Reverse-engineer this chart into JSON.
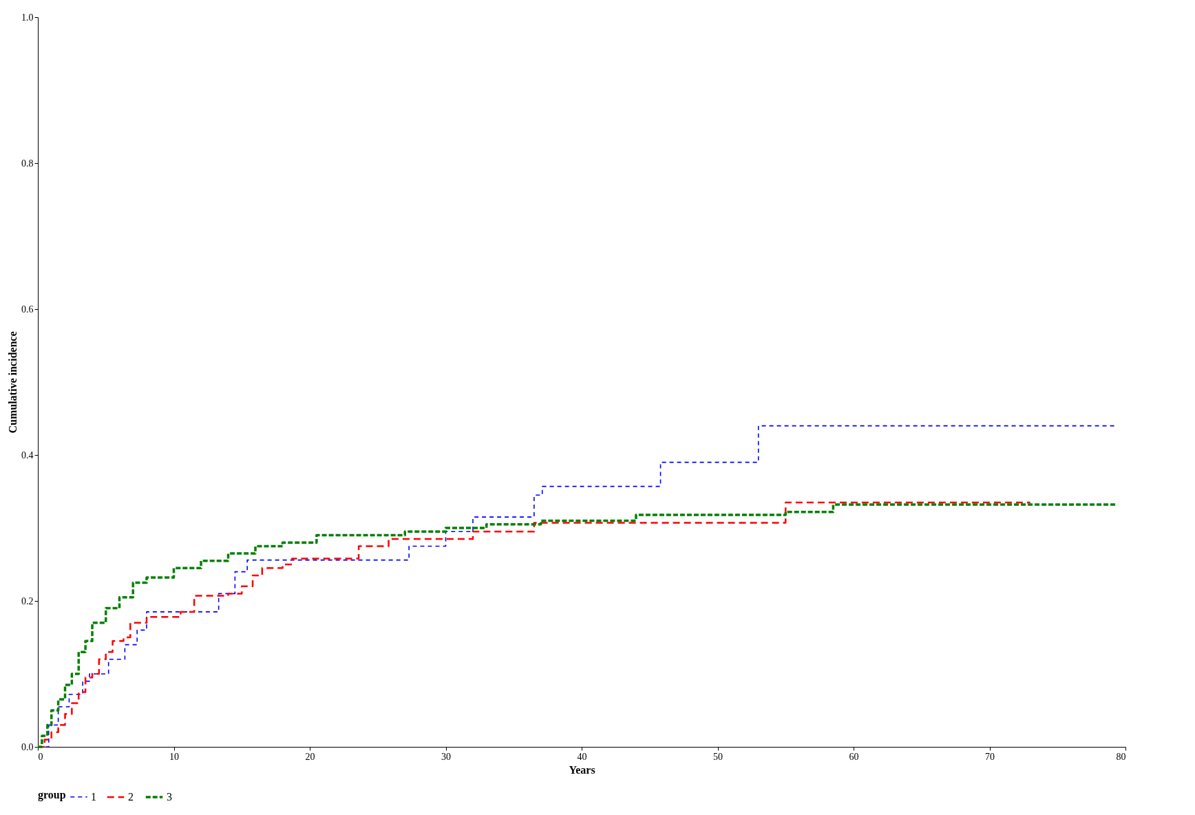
{
  "chart_data": {
    "type": "step",
    "xlabel": "Years",
    "ylabel": "Cumulative incidence",
    "legend_title": "group",
    "legend": "bottom",
    "grid": false,
    "marker": "none",
    "line_style": "dashed",
    "xlim": [
      0,
      80
    ],
    "xticks": [
      0,
      10,
      20,
      30,
      40,
      50,
      60,
      70,
      80
    ],
    "ylim": [
      0,
      1.0
    ],
    "yticks": [
      {
        "value": 0,
        "label": "0.0"
      },
      {
        "value": 0.2,
        "label": "0.2"
      },
      {
        "value": 0.4,
        "label": "0.4"
      },
      {
        "value": 0.6,
        "label": "0.6"
      },
      {
        "value": 0.8,
        "label": "0.8"
      },
      {
        "value": 1.0,
        "label": "1.0"
      }
    ],
    "series": [
      {
        "name": "1",
        "color": "#0000ff",
        "x": [
          0,
          0.8,
          1.5,
          2.3,
          3.3,
          3.8,
          5.2,
          6.4,
          7.3,
          8,
          13.3,
          14.5,
          15.4,
          27.3,
          30,
          32,
          36.5,
          37.1,
          45.8,
          53,
          79.4
        ],
        "values": [
          0,
          0.03,
          0.055,
          0.072,
          0.09,
          0.1,
          0.12,
          0.14,
          0.16,
          0.185,
          0.21,
          0.24,
          0.256,
          0.275,
          0.295,
          0.315,
          0.345,
          0.357,
          0.39,
          0.44,
          0.44
        ]
      },
      {
        "name": "2",
        "color": "#ff0000",
        "x": [
          0,
          0.5,
          1,
          1.5,
          2,
          2.5,
          3,
          3.5,
          4,
          4.5,
          5,
          5.5,
          6.3,
          6.8,
          8,
          10.5,
          11.5,
          14,
          15,
          15.8,
          16.5,
          18,
          18.7,
          23.6,
          25.8,
          32,
          36.5,
          55,
          73
        ],
        "values": [
          0,
          0.01,
          0.02,
          0.03,
          0.045,
          0.06,
          0.075,
          0.095,
          0.1,
          0.12,
          0.13,
          0.145,
          0.15,
          0.17,
          0.178,
          0.185,
          0.207,
          0.21,
          0.22,
          0.235,
          0.245,
          0.25,
          0.258,
          0.275,
          0.285,
          0.295,
          0.307,
          0.335,
          0.335
        ]
      },
      {
        "name": "3",
        "color": "#008000",
        "x": [
          0,
          0.3,
          0.7,
          1,
          1.5,
          2,
          2.5,
          3,
          3.5,
          4,
          5,
          6,
          7,
          8,
          10,
          12,
          14,
          16,
          18,
          20.5,
          27,
          30,
          33,
          37,
          44,
          55,
          58.5,
          79.4
        ],
        "values": [
          0,
          0.015,
          0.03,
          0.05,
          0.065,
          0.085,
          0.1,
          0.13,
          0.145,
          0.17,
          0.19,
          0.205,
          0.225,
          0.232,
          0.245,
          0.255,
          0.265,
          0.275,
          0.28,
          0.29,
          0.295,
          0.3,
          0.305,
          0.31,
          0.318,
          0.322,
          0.332,
          0.332
        ]
      }
    ]
  }
}
